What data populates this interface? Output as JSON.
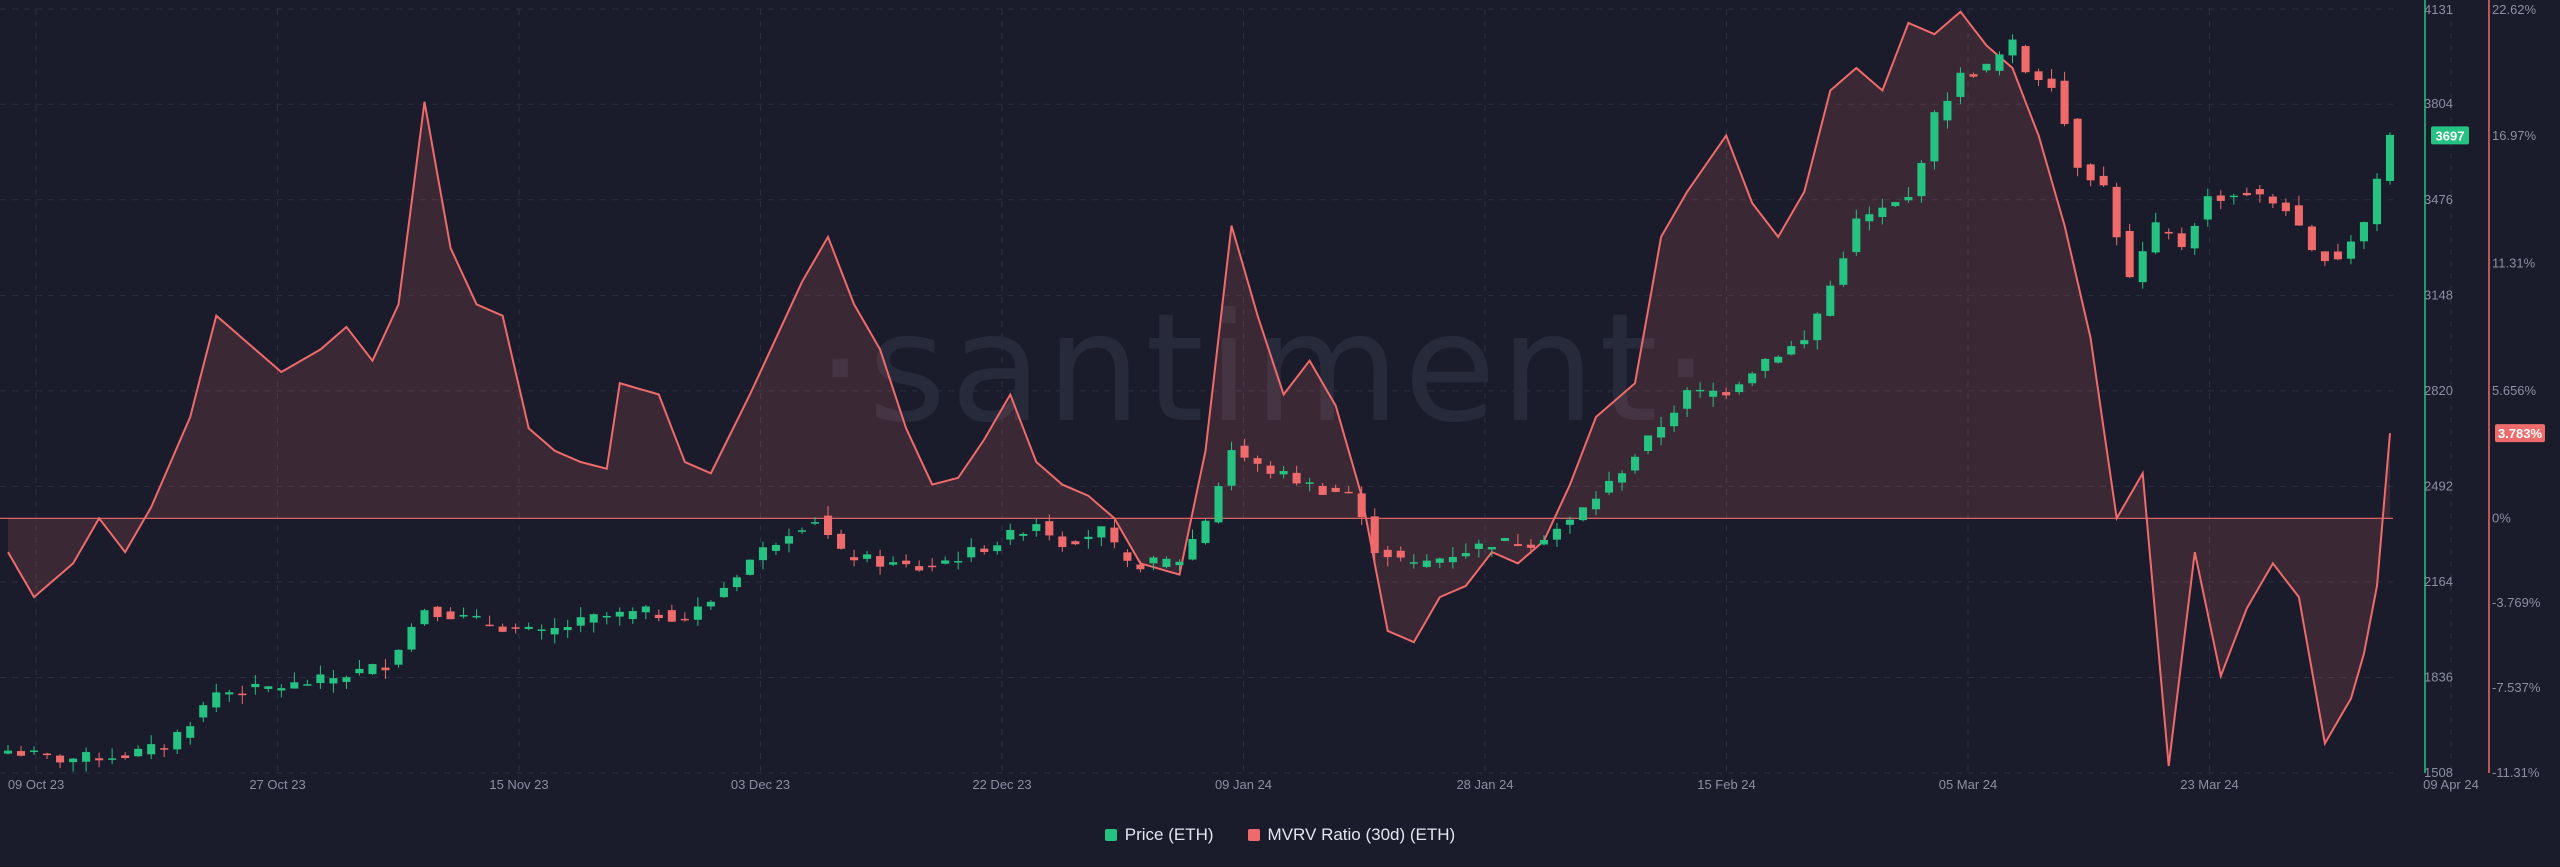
{
  "watermark": "·santiment·",
  "legend": {
    "price_label": "Price (ETH)",
    "mvrv_label": "MVRV Ratio (30d) (ETH)"
  },
  "colors": {
    "background": "#1a1c2c",
    "up": "#26c281",
    "down": "#ef6b6b",
    "mvrv": "#ef6b6b",
    "grid": "#2b2f42"
  },
  "chart_data": {
    "type": "line",
    "x_tick_labels": [
      "09 Oct 23",
      "27 Oct 23",
      "15 Nov 23",
      "03 Dec 23",
      "22 Dec 23",
      "09 Jan 24",
      "28 Jan 24",
      "15 Feb 24",
      "05 Mar 24",
      "23 Mar 24",
      "09 Apr 24"
    ],
    "price_axis": {
      "ticks": [
        "4131",
        "3804",
        "3476",
        "3148",
        "2820",
        "2492",
        "2164",
        "1836",
        "1508"
      ],
      "ylim": [
        1508,
        4131
      ],
      "current_value": "3697"
    },
    "mvrv_axis": {
      "ticks": [
        "22.62%",
        "16.97%",
        "11.31%",
        "5.656%",
        "0%",
        "-3.769%",
        "-7.537%",
        "-11.31%"
      ],
      "tick_values": [
        22.62,
        16.97,
        11.31,
        5.656,
        0,
        -3.769,
        -7.537,
        -11.31
      ],
      "ylim": [
        -11.31,
        22.62
      ],
      "current_value": "3.783%"
    },
    "series": [
      {
        "name": "Price (ETH)",
        "kind": "candlestick",
        "dates": [
          "2023-10-09",
          "2024-04-09"
        ],
        "close_anchors": [
          [
            "2023-10-09",
            1585
          ],
          [
            "2023-10-13",
            1555
          ],
          [
            "2023-10-18",
            1570
          ],
          [
            "2023-10-21",
            1600
          ],
          [
            "2023-10-23",
            1685
          ],
          [
            "2023-10-25",
            1785
          ],
          [
            "2023-10-27",
            1790
          ],
          [
            "2023-10-31",
            1810
          ],
          [
            "2023-11-03",
            1835
          ],
          [
            "2023-11-07",
            1880
          ],
          [
            "2023-11-10",
            2075
          ],
          [
            "2023-11-13",
            2040
          ],
          [
            "2023-11-16",
            2010
          ],
          [
            "2023-11-19",
            1985
          ],
          [
            "2023-11-23",
            2040
          ],
          [
            "2023-11-27",
            2060
          ],
          [
            "2023-11-30",
            2040
          ],
          [
            "2023-12-02",
            2100
          ],
          [
            "2023-12-05",
            2240
          ],
          [
            "2023-12-08",
            2340
          ],
          [
            "2023-12-10",
            2380
          ],
          [
            "2023-12-12",
            2260
          ],
          [
            "2023-12-15",
            2230
          ],
          [
            "2023-12-18",
            2210
          ],
          [
            "2023-12-21",
            2250
          ],
          [
            "2023-12-24",
            2300
          ],
          [
            "2023-12-27",
            2370
          ],
          [
            "2023-12-29",
            2300
          ],
          [
            "2024-01-01",
            2340
          ],
          [
            "2024-01-03",
            2220
          ],
          [
            "2024-01-07",
            2240
          ],
          [
            "2024-01-09",
            2380
          ],
          [
            "2024-01-11",
            2620
          ],
          [
            "2024-01-13",
            2560
          ],
          [
            "2024-01-15",
            2530
          ],
          [
            "2024-01-18",
            2480
          ],
          [
            "2024-01-20",
            2470
          ],
          [
            "2024-01-22",
            2280
          ],
          [
            "2024-01-25",
            2220
          ],
          [
            "2024-01-28",
            2260
          ],
          [
            "2024-01-31",
            2300
          ],
          [
            "2024-02-03",
            2300
          ],
          [
            "2024-02-06",
            2370
          ],
          [
            "2024-02-09",
            2500
          ],
          [
            "2024-02-12",
            2650
          ],
          [
            "2024-02-15",
            2810
          ],
          [
            "2024-02-18",
            2820
          ],
          [
            "2024-02-21",
            2930
          ],
          [
            "2024-02-24",
            2990
          ],
          [
            "2024-02-26",
            3180
          ],
          [
            "2024-02-28",
            3400
          ],
          [
            "2024-03-01",
            3440
          ],
          [
            "2024-03-03",
            3480
          ],
          [
            "2024-03-05",
            3760
          ],
          [
            "2024-03-07",
            3900
          ],
          [
            "2024-03-09",
            3930
          ],
          [
            "2024-03-11",
            4010
          ],
          [
            "2024-03-12",
            3920
          ],
          [
            "2024-03-14",
            3880
          ],
          [
            "2024-03-16",
            3600
          ],
          [
            "2024-03-18",
            3520
          ],
          [
            "2024-03-20",
            3200
          ],
          [
            "2024-03-22",
            3380
          ],
          [
            "2024-03-24",
            3320
          ],
          [
            "2024-03-26",
            3480
          ],
          [
            "2024-03-29",
            3500
          ],
          [
            "2024-04-01",
            3450
          ],
          [
            "2024-04-03",
            3290
          ],
          [
            "2024-04-05",
            3280
          ],
          [
            "2024-04-07",
            3400
          ],
          [
            "2024-04-09",
            3697
          ]
        ]
      },
      {
        "name": "MVRV Ratio (30d) (ETH)",
        "kind": "area",
        "anchors": [
          [
            "2023-10-09",
            -1.5
          ],
          [
            "2023-10-11",
            -3.5
          ],
          [
            "2023-10-14",
            -2.0
          ],
          [
            "2023-10-16",
            0.0
          ],
          [
            "2023-10-18",
            -1.5
          ],
          [
            "2023-10-20",
            0.5
          ],
          [
            "2023-10-23",
            4.5
          ],
          [
            "2023-10-25",
            9.0
          ],
          [
            "2023-10-27",
            8.0
          ],
          [
            "2023-10-30",
            6.5
          ],
          [
            "2023-11-02",
            7.5
          ],
          [
            "2023-11-04",
            8.5
          ],
          [
            "2023-11-06",
            7.0
          ],
          [
            "2023-11-08",
            9.5
          ],
          [
            "2023-11-10",
            18.5
          ],
          [
            "2023-11-12",
            12.0
          ],
          [
            "2023-11-14",
            9.5
          ],
          [
            "2023-11-16",
            9.0
          ],
          [
            "2023-11-18",
            4.0
          ],
          [
            "2023-11-20",
            3.0
          ],
          [
            "2023-11-22",
            2.5
          ],
          [
            "2023-11-24",
            2.2
          ],
          [
            "2023-11-25",
            6.0
          ],
          [
            "2023-11-28",
            5.5
          ],
          [
            "2023-11-30",
            2.5
          ],
          [
            "2023-12-02",
            2.0
          ],
          [
            "2023-12-05",
            5.5
          ],
          [
            "2023-12-07",
            8.0
          ],
          [
            "2023-12-09",
            10.5
          ],
          [
            "2023-12-11",
            12.5
          ],
          [
            "2023-12-13",
            9.5
          ],
          [
            "2023-12-15",
            7.5
          ],
          [
            "2023-12-17",
            4.0
          ],
          [
            "2023-12-19",
            1.5
          ],
          [
            "2023-12-21",
            1.8
          ],
          [
            "2023-12-23",
            3.5
          ],
          [
            "2023-12-25",
            5.5
          ],
          [
            "2023-12-27",
            2.5
          ],
          [
            "2023-12-29",
            1.5
          ],
          [
            "2023-12-31",
            1.0
          ],
          [
            "2024-01-02",
            0.0
          ],
          [
            "2024-01-04",
            -2.0
          ],
          [
            "2024-01-07",
            -2.5
          ],
          [
            "2024-01-09",
            3.0
          ],
          [
            "2024-01-11",
            13.0
          ],
          [
            "2024-01-13",
            9.0
          ],
          [
            "2024-01-15",
            5.5
          ],
          [
            "2024-01-17",
            7.0
          ],
          [
            "2024-01-19",
            5.0
          ],
          [
            "2024-01-21",
            1.0
          ],
          [
            "2024-01-23",
            -5.0
          ],
          [
            "2024-01-25",
            -5.5
          ],
          [
            "2024-01-27",
            -3.5
          ],
          [
            "2024-01-29",
            -3.0
          ],
          [
            "2024-01-31",
            -1.5
          ],
          [
            "2024-02-02",
            -2.0
          ],
          [
            "2024-02-04",
            -1.0
          ],
          [
            "2024-02-06",
            1.5
          ],
          [
            "2024-02-08",
            4.5
          ],
          [
            "2024-02-11",
            6.0
          ],
          [
            "2024-02-13",
            12.5
          ],
          [
            "2024-02-15",
            14.5
          ],
          [
            "2024-02-18",
            17.0
          ],
          [
            "2024-02-20",
            14.0
          ],
          [
            "2024-02-22",
            12.5
          ],
          [
            "2024-02-24",
            14.5
          ],
          [
            "2024-02-26",
            19.0
          ],
          [
            "2024-02-28",
            20.0
          ],
          [
            "2024-03-01",
            19.0
          ],
          [
            "2024-03-03",
            22.0
          ],
          [
            "2024-03-05",
            21.5
          ],
          [
            "2024-03-07",
            22.5
          ],
          [
            "2024-03-09",
            21.0
          ],
          [
            "2024-03-11",
            20.0
          ],
          [
            "2024-03-13",
            17.0
          ],
          [
            "2024-03-15",
            13.0
          ],
          [
            "2024-03-17",
            8.0
          ],
          [
            "2024-03-19",
            0.0
          ],
          [
            "2024-03-21",
            2.0
          ],
          [
            "2024-03-23",
            -11.0
          ],
          [
            "2024-03-25",
            -1.5
          ],
          [
            "2024-03-27",
            -7.0
          ],
          [
            "2024-03-29",
            -4.0
          ],
          [
            "2024-03-31",
            -2.0
          ],
          [
            "2024-04-02",
            -3.5
          ],
          [
            "2024-04-04",
            -10.0
          ],
          [
            "2024-04-06",
            -8.0
          ],
          [
            "2024-04-07",
            -6.0
          ],
          [
            "2024-04-08",
            -3.0
          ],
          [
            "2024-04-09",
            3.783
          ]
        ]
      }
    ],
    "grid": true,
    "legend_position": "bottom-center"
  }
}
